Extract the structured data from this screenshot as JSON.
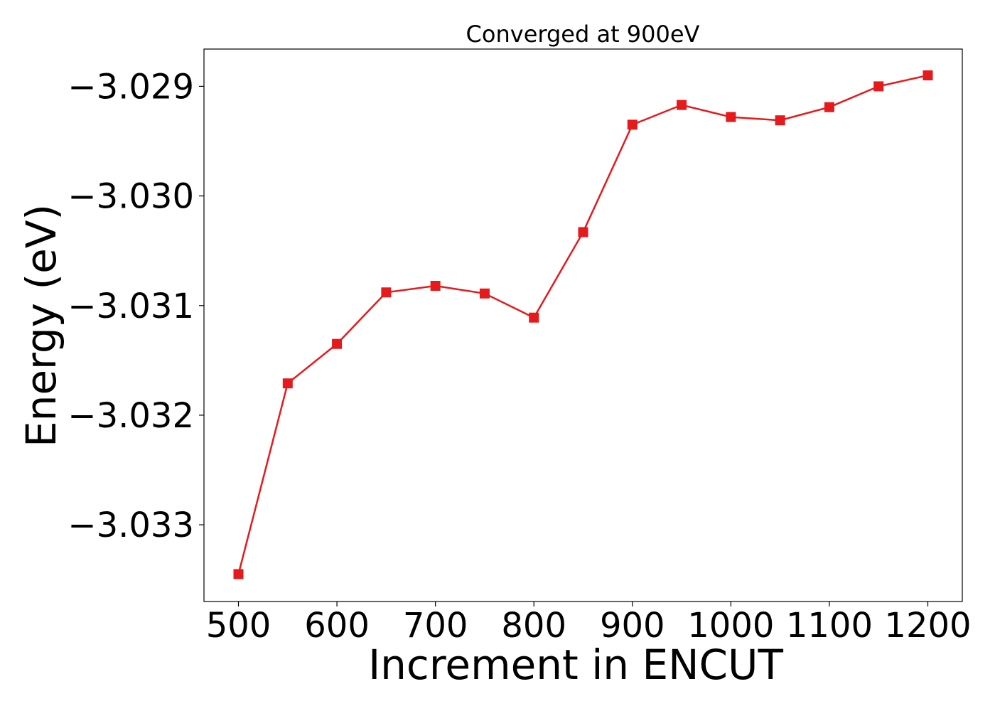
{
  "chart_data": {
    "type": "line",
    "title": "Converged at 900eV",
    "xlabel": "Increment in ENCUT",
    "ylabel": "Energy (eV)",
    "x_ticks": [
      500,
      600,
      700,
      800,
      900,
      1000,
      1100,
      1200
    ],
    "x_tick_labels": [
      "500",
      "600",
      "700",
      "800",
      "900",
      "1000",
      "1100",
      "1200"
    ],
    "y_ticks": [
      -3.029,
      -3.03,
      -3.031,
      -3.032,
      -3.033
    ],
    "y_tick_labels": [
      "−3.029",
      "−3.030",
      "−3.031",
      "−3.032",
      "−3.033"
    ],
    "xlim": [
      465,
      1235
    ],
    "ylim": [
      -3.0337,
      -3.02866
    ],
    "grid": false,
    "series": [
      {
        "color": "#e41a1c",
        "marker": "square",
        "x": [
          500,
          550,
          600,
          650,
          700,
          750,
          800,
          850,
          900,
          950,
          1000,
          1050,
          1100,
          1150,
          1200
        ],
        "y": [
          -3.03345,
          -3.03171,
          -3.03135,
          -3.03088,
          -3.03082,
          -3.03089,
          -3.03111,
          -3.03033,
          -3.02935,
          -3.02917,
          -3.02928,
          -3.02931,
          -3.02919,
          -3.029,
          -3.0289
        ]
      }
    ]
  }
}
